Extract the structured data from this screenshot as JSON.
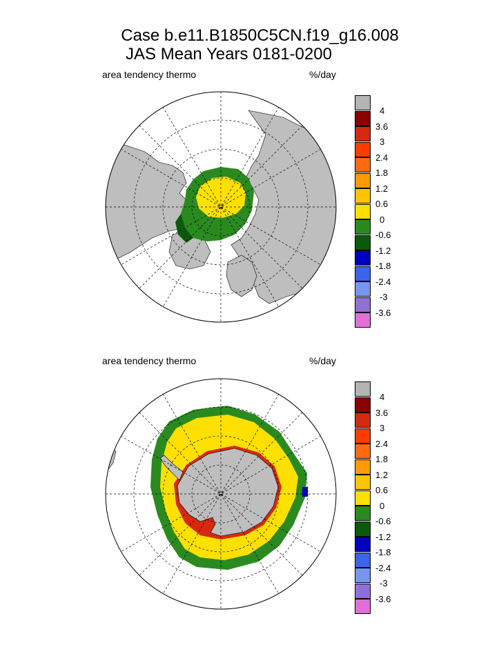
{
  "title": {
    "line1": "Case b.e11.B1850C5CN.f19_g16.008",
    "line2": "JAS Mean    Years 0181-0200"
  },
  "panels": [
    {
      "name": "north",
      "left_label": "area tendency thermo",
      "right_label": "%/day",
      "hemisphere": "north"
    },
    {
      "name": "south",
      "left_label": "area tendency thermo",
      "right_label": "%/day",
      "hemisphere": "south"
    }
  ],
  "colorbar": {
    "levels": [
      "4",
      "3.6",
      "3",
      "2.4",
      "1.8",
      "1.2",
      "0.6",
      "0",
      "-0.6",
      "-1.2",
      "-1.8",
      "-2.4",
      "-3",
      "-3.6"
    ],
    "colors": [
      "#b4b4b4",
      "#8b0000",
      "#d52a10",
      "#ff3c00",
      "#ff6a10",
      "#ff9b00",
      "#ffc400",
      "#ffe000",
      "#2a8a20",
      "#0a5a0a",
      "#0000c0",
      "#3c64e8",
      "#7896f0",
      "#9070d8",
      "#e070d8"
    ]
  },
  "colors": {
    "land": "#bebebe",
    "ice_positive": "#ffe000",
    "ice_negative": "#2a8a20",
    "ice_dark_negative": "#0a5a0a",
    "ocean": "#ffffff"
  }
}
